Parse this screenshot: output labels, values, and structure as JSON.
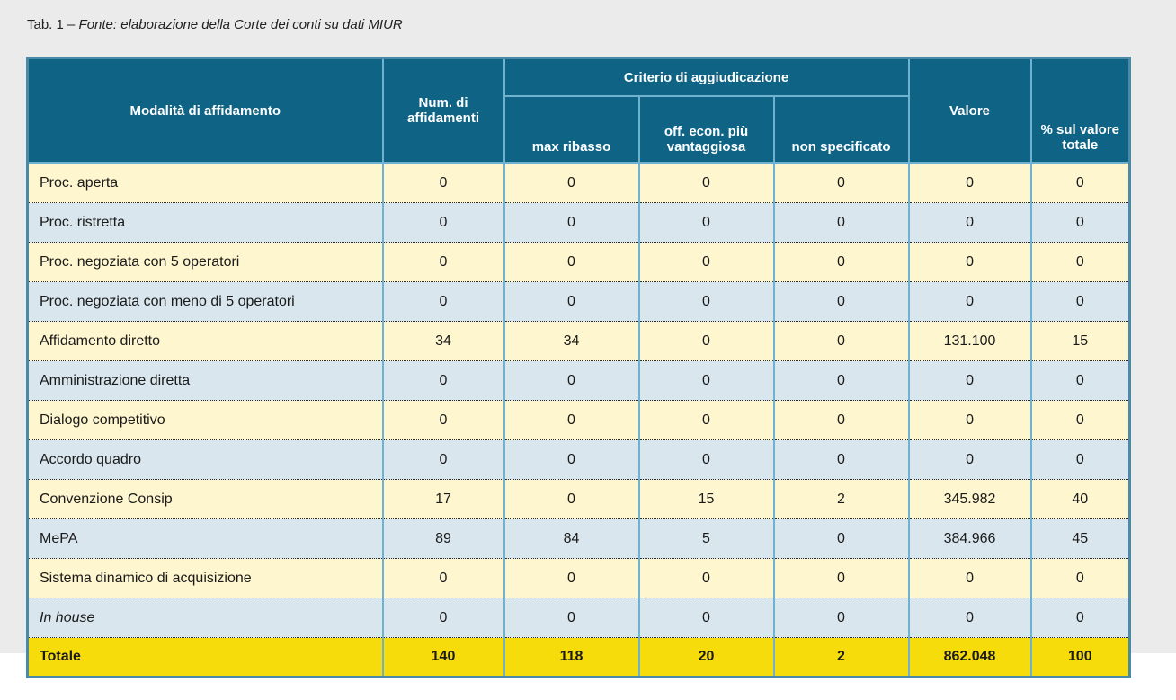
{
  "caption": {
    "lead": "Tab. 1 – ",
    "source": "Fonte: elaborazione della Corte dei conti su dati MIUR"
  },
  "header": {
    "modalita": "Modalità di affidamento",
    "num_affidamenti": "Num. di affidamenti",
    "criterio": "Criterio di aggiudicazione",
    "max_ribasso": "max ribasso",
    "off_econ": "off. econ. più vantaggiosa",
    "non_specificato": "non specificato",
    "valore": "Valore",
    "perc_valore": "% sul valore totale"
  },
  "rows": [
    {
      "label": "Proc. aperta",
      "num": "0",
      "max": "0",
      "off": "0",
      "non": "0",
      "valore": "0",
      "perc": "0"
    },
    {
      "label": "Proc. ristretta",
      "num": "0",
      "max": "0",
      "off": "0",
      "non": "0",
      "valore": "0",
      "perc": "0"
    },
    {
      "label": "Proc. negoziata con 5 operatori",
      "num": "0",
      "max": "0",
      "off": "0",
      "non": "0",
      "valore": "0",
      "perc": "0"
    },
    {
      "label": "Proc. negoziata con meno di 5 operatori",
      "num": "0",
      "max": "0",
      "off": "0",
      "non": "0",
      "valore": "0",
      "perc": "0"
    },
    {
      "label": "Affidamento diretto",
      "num": "34",
      "max": "34",
      "off": "0",
      "non": "0",
      "valore": "131.100",
      "perc": "15"
    },
    {
      "label": "Amministrazione diretta",
      "num": "0",
      "max": "0",
      "off": "0",
      "non": "0",
      "valore": "0",
      "perc": "0"
    },
    {
      "label": "Dialogo competitivo",
      "num": "0",
      "max": "0",
      "off": "0",
      "non": "0",
      "valore": "0",
      "perc": "0"
    },
    {
      "label": "Accordo quadro",
      "num": "0",
      "max": "0",
      "off": "0",
      "non": "0",
      "valore": "0",
      "perc": "0"
    },
    {
      "label": "Convenzione Consip",
      "num": "17",
      "max": "0",
      "off": "15",
      "non": "2",
      "valore": "345.982",
      "perc": "40"
    },
    {
      "label": "MePA",
      "num": "89",
      "max": "84",
      "off": "5",
      "non": "0",
      "valore": "384.966",
      "perc": "45"
    },
    {
      "label": "Sistema dinamico di acquisizione",
      "num": "0",
      "max": "0",
      "off": "0",
      "non": "0",
      "valore": "0",
      "perc": "0"
    },
    {
      "label": "In house",
      "num": "0",
      "max": "0",
      "off": "0",
      "non": "0",
      "valore": "0",
      "perc": "0"
    }
  ],
  "total": {
    "label": "Totale",
    "num": "140",
    "max": "118",
    "off": "20",
    "non": "2",
    "valore": "862.048",
    "perc": "100"
  },
  "colors": {
    "header_bg": "#0f6486",
    "row_yellow": "#fdf6cf",
    "row_blue": "#d9e6ee",
    "total_bg": "#f7dc0b"
  }
}
